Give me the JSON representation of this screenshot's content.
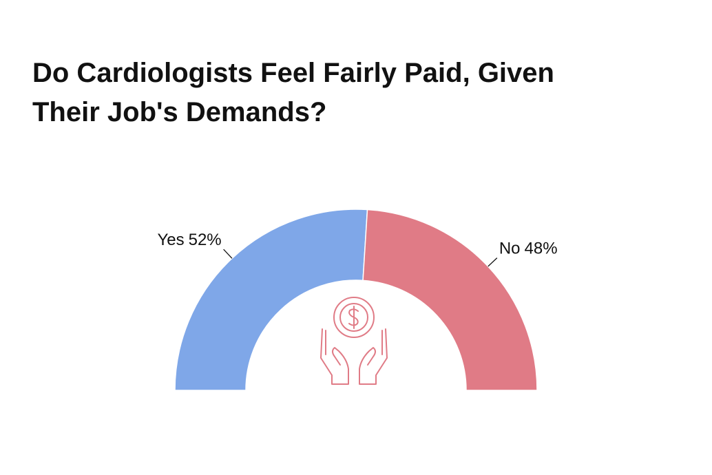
{
  "chart_data": {
    "type": "half-donut",
    "title": [
      "Do Cardiologists Feel Fairly Paid, Given",
      "Their Job's Demands?"
    ],
    "categories": [
      "Yes",
      "No"
    ],
    "values": [
      52,
      48
    ],
    "value_labels": [
      "52%",
      "48%"
    ],
    "colors": [
      "#7fa7e8",
      "#e07b86"
    ]
  }
}
